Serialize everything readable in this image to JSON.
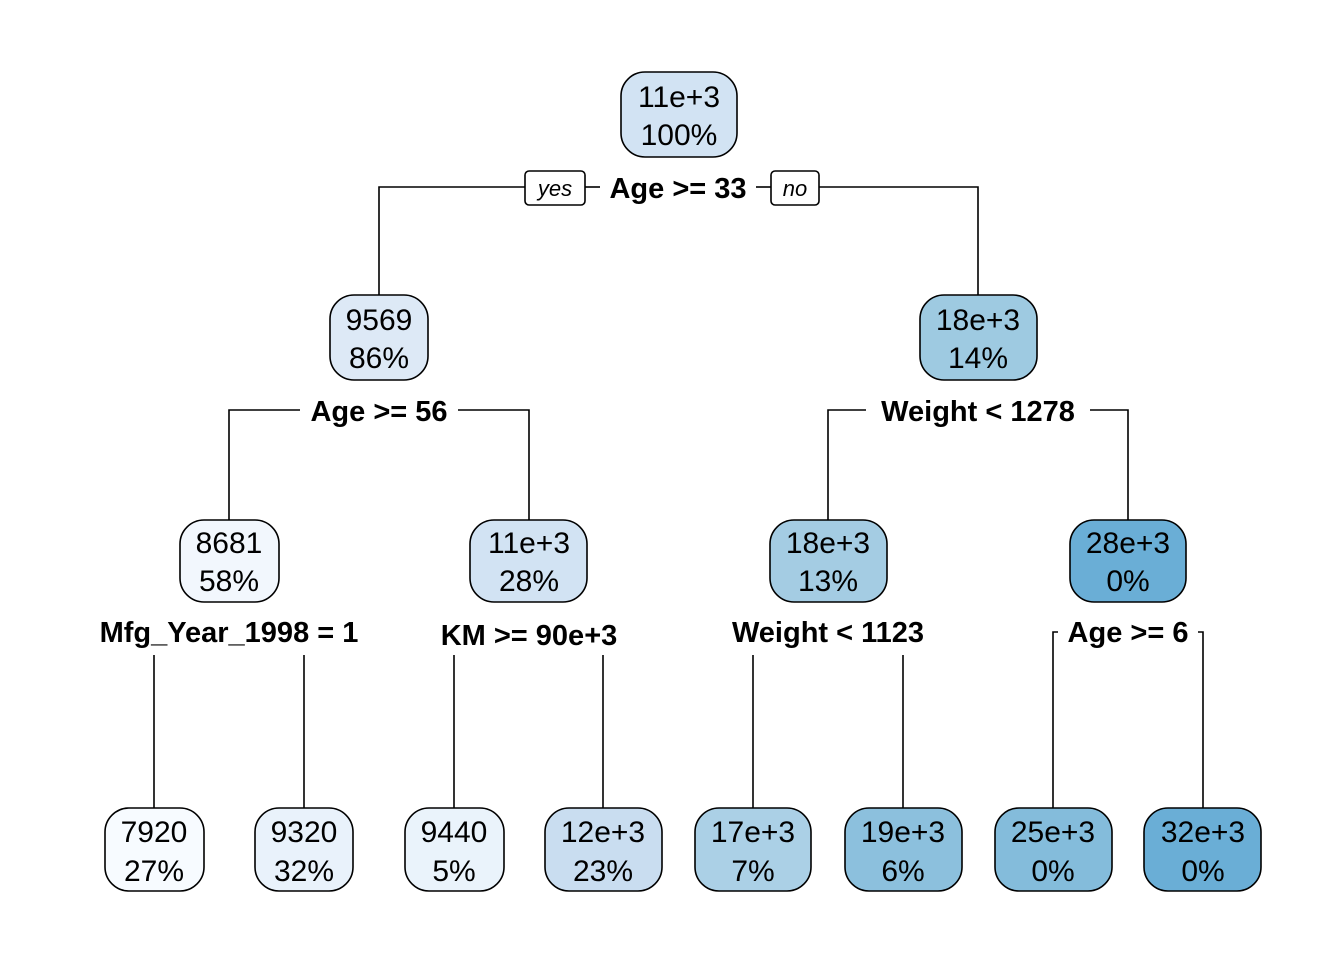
{
  "tree": {
    "root": {
      "value": "11e+3",
      "pct": "100%",
      "fill": "#d2e3f3"
    },
    "branch_labels": {
      "yes": "yes",
      "no": "no"
    },
    "splits": {
      "root": "Age >= 33",
      "left": "Age >= 56",
      "right": "Weight < 1278",
      "ll": "Mfg_Year_1998 = 1",
      "lr": "KM >= 90e+3",
      "rl": "Weight < 1123",
      "rr": "Age >= 6"
    },
    "nodes": {
      "left": {
        "value": "9569",
        "pct": "86%",
        "fill": "#dde9f6"
      },
      "right": {
        "value": "18e+3",
        "pct": "14%",
        "fill": "#9ecae1"
      },
      "ll": {
        "value": "8681",
        "pct": "58%",
        "fill": "#f2f7fd"
      },
      "lr": {
        "value": "11e+3",
        "pct": "28%",
        "fill": "#d2e3f3"
      },
      "rl": {
        "value": "18e+3",
        "pct": "13%",
        "fill": "#a4cce3"
      },
      "rr": {
        "value": "28e+3",
        "pct": "0%",
        "fill": "#6aaed6"
      }
    },
    "leaves": [
      {
        "value": "7920",
        "pct": "27%",
        "fill": "#f7fbff"
      },
      {
        "value": "9320",
        "pct": "32%",
        "fill": "#e9f2fb"
      },
      {
        "value": "9440",
        "pct": "5%",
        "fill": "#eaf3fb"
      },
      {
        "value": "12e+3",
        "pct": "23%",
        "fill": "#c9ddf0"
      },
      {
        "value": "17e+3",
        "pct": "7%",
        "fill": "#abd0e6"
      },
      {
        "value": "19e+3",
        "pct": "6%",
        "fill": "#8cc0dd"
      },
      {
        "value": "25e+3",
        "pct": "0%",
        "fill": "#84bcdb"
      },
      {
        "value": "32e+3",
        "pct": "0%",
        "fill": "#6aaed6"
      }
    ]
  }
}
